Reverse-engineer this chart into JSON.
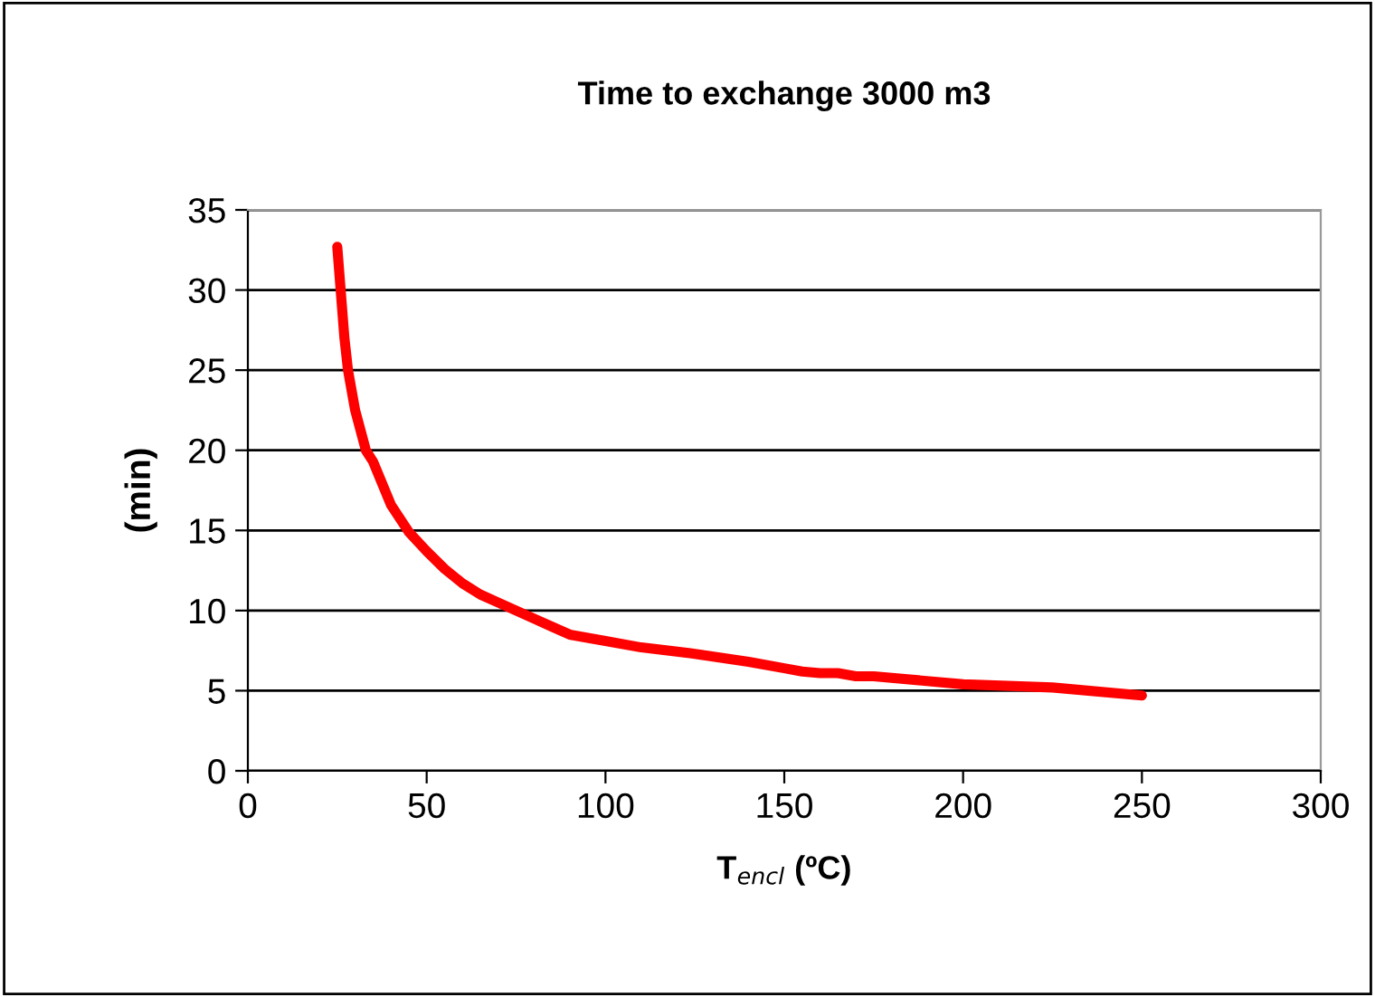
{
  "chart_data": {
    "type": "line",
    "title": "Time to exchange 3000 m3",
    "xlabel": "T$_{encl}$ (ºC)",
    "ylabel": "(min)",
    "series": [
      {
        "color": "#ff0000",
        "x": [
          25,
          27,
          28,
          30,
          33,
          35,
          40,
          45,
          50,
          55,
          60,
          65,
          70,
          80,
          85,
          90,
          100,
          110,
          125,
          140,
          150,
          155,
          160,
          165,
          170,
          175,
          200,
          225,
          250
        ],
        "values": [
          32.7,
          27,
          25,
          22.5,
          20,
          19.3,
          16.6,
          14.9,
          13.7,
          12.6,
          11.7,
          11,
          10.5,
          9.5,
          9,
          8.5,
          8.1,
          7.7,
          7.3,
          6.8,
          6.4,
          6.2,
          6.1,
          6.1,
          5.9,
          5.9,
          5.4,
          5.2,
          4.7
        ]
      }
    ],
    "xlim": [
      0,
      300
    ],
    "xticks": [
      0,
      50,
      100,
      150,
      200,
      250,
      300
    ],
    "ylim": [
      0,
      35
    ],
    "yticks": [
      0,
      5,
      10,
      15,
      20,
      25,
      30,
      35
    ],
    "grid": "y",
    "marker": "none",
    "line_style": "solid"
  }
}
